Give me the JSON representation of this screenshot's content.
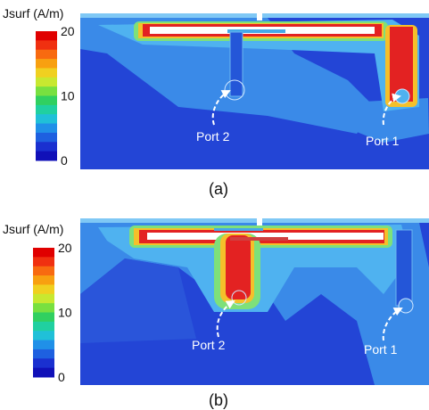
{
  "panels": [
    {
      "colorbar": {
        "label": "Jsurf (A/m)",
        "ticks": [
          20,
          10,
          0
        ]
      },
      "ports": [
        "Port 2",
        "Port 1"
      ],
      "caption": "(a)"
    },
    {
      "colorbar": {
        "label": "Jsurf (A/m)",
        "ticks": [
          20,
          10,
          0
        ]
      },
      "ports": [
        "Port 2",
        "Port 1"
      ],
      "caption": "(b)"
    }
  ]
}
